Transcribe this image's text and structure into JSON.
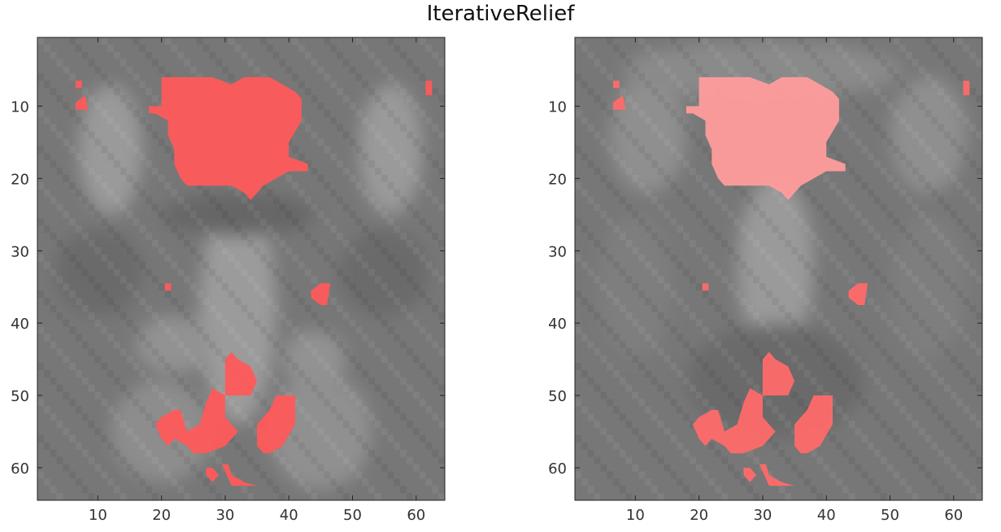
{
  "title": "IterativeRelief",
  "axis": {
    "xlim": [
      0.5,
      64.5
    ],
    "ylim": [
      0.5,
      64.5
    ],
    "y_direction": "reverse",
    "xticks": [
      10,
      20,
      30,
      40,
      50,
      60
    ],
    "yticks": [
      10,
      20,
      30,
      40,
      50,
      60
    ],
    "xtick_labels": [
      "10",
      "20",
      "30",
      "40",
      "50",
      "60"
    ],
    "ytick_labels": [
      "10",
      "20",
      "30",
      "40",
      "50",
      "60"
    ]
  },
  "colors": {
    "overlay_left": "#ff5a5a",
    "overlay_right": "#ff6a6a",
    "overlay_right_top": "#ff9c9c",
    "background_gray": "#7a7a7a"
  },
  "panels": [
    {
      "name": "left",
      "description_kind": "grayscale slice with red overlay"
    },
    {
      "name": "right",
      "description_kind": "grayscale slice with red overlay"
    }
  ]
}
